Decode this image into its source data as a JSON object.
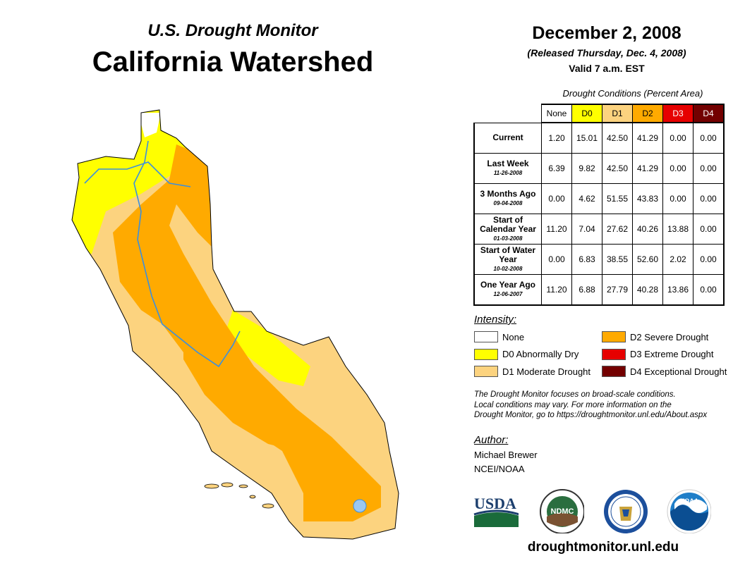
{
  "header": {
    "subtitle": "U.S. Drought Monitor",
    "title": "California Watershed",
    "date": "December 2, 2008",
    "released": "(Released Thursday, Dec. 4, 2008)",
    "valid": "Valid 7 a.m. EST"
  },
  "table": {
    "caption": "Drought Conditions (Percent Area)",
    "columns": [
      "None",
      "D0",
      "D1",
      "D2",
      "D3",
      "D4"
    ],
    "column_colors": [
      "#ffffff",
      "#ffff00",
      "#fcd37f",
      "#ffaa00",
      "#e60000",
      "#730000"
    ],
    "rows": [
      {
        "label": "Current",
        "date": "",
        "values": [
          "1.20",
          "15.01",
          "42.50",
          "41.29",
          "0.00",
          "0.00"
        ]
      },
      {
        "label": "Last Week",
        "date": "11-26-2008",
        "values": [
          "6.39",
          "9.82",
          "42.50",
          "41.29",
          "0.00",
          "0.00"
        ]
      },
      {
        "label": "3 Months Ago",
        "date": "09-04-2008",
        "values": [
          "0.00",
          "4.62",
          "51.55",
          "43.83",
          "0.00",
          "0.00"
        ]
      },
      {
        "label": "Start of Calendar Year",
        "date": "01-03-2008",
        "values": [
          "11.20",
          "7.04",
          "27.62",
          "40.26",
          "13.88",
          "0.00"
        ]
      },
      {
        "label": "Start of Water Year",
        "date": "10-02-2008",
        "values": [
          "0.00",
          "6.83",
          "38.55",
          "52.60",
          "2.02",
          "0.00"
        ]
      },
      {
        "label": "One Year Ago",
        "date": "12-06-2007",
        "values": [
          "11.20",
          "6.88",
          "27.79",
          "40.28",
          "13.86",
          "0.00"
        ]
      }
    ]
  },
  "legend": {
    "title": "Intensity:",
    "items": [
      {
        "label": "None",
        "color": "#ffffff"
      },
      {
        "label": "D0 Abnormally Dry",
        "color": "#ffff00"
      },
      {
        "label": "D1 Moderate Drought",
        "color": "#fcd37f"
      },
      {
        "label": "D2 Severe Drought",
        "color": "#ffaa00"
      },
      {
        "label": "D3 Extreme Drought",
        "color": "#e60000"
      },
      {
        "label": "D4 Exceptional Drought",
        "color": "#730000"
      }
    ]
  },
  "note": [
    "The Drought Monitor focuses on broad-scale conditions.",
    "Local conditions may vary. For more information on the",
    "Drought Monitor, go to https://droughtmonitor.unl.edu/About.aspx"
  ],
  "author": {
    "heading": "Author:",
    "name": "Michael Brewer",
    "org": "NCEI/NOAA"
  },
  "logos": {
    "usda": "USDA",
    "ndmc": "NDMC",
    "noaa": "NOAA"
  },
  "footer_url": "droughtmonitor.unl.edu"
}
